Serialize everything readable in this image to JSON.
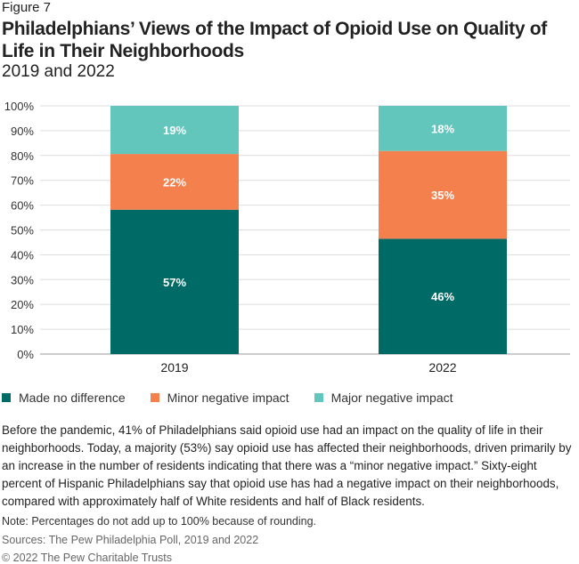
{
  "figure_label": "Figure 7",
  "title": "Philadelphians’ Views of the Impact of Opioid Use on Quality of Life in Their Neighborhoods",
  "subtitle": "2019 and 2022",
  "chart_data": {
    "type": "bar",
    "stacked": true,
    "categories": [
      "2019",
      "2022"
    ],
    "series": [
      {
        "name": "Made no difference",
        "color": "#006b66",
        "values": [
          57,
          46
        ]
      },
      {
        "name": "Minor negative impact",
        "color": "#f4804d",
        "values": [
          22,
          35
        ]
      },
      {
        "name": "Major negative impact",
        "color": "#62c6bd",
        "values": [
          19,
          18
        ]
      }
    ],
    "ylim": [
      0,
      100
    ],
    "yticks": [
      "0%",
      "10%",
      "20%",
      "30%",
      "40%",
      "50%",
      "60%",
      "70%",
      "80%",
      "90%",
      "100%"
    ],
    "grid": true,
    "legend_position": "bottom"
  },
  "body_text": "Before the pandemic, 41% of Philadelphians said opioid use had an impact on the quality of life in their neighborhoods. Today, a majority (53%) say opioid use has affected their neighborhoods, driven primarily by an increase in the number of residents indicating that there was a “minor negative impact.” Sixty-eight percent of Hispanic Philadelphians say that opioid use has had a negative impact on their neighborhoods, compared with approximately half of White residents and half of Black residents.",
  "note": "Note: Percentages do not add up to 100% because of rounding.",
  "sources": "Sources: The Pew Philadelphia Poll, 2019 and 2022",
  "copyright": "© 2022 The Pew Charitable Trusts"
}
